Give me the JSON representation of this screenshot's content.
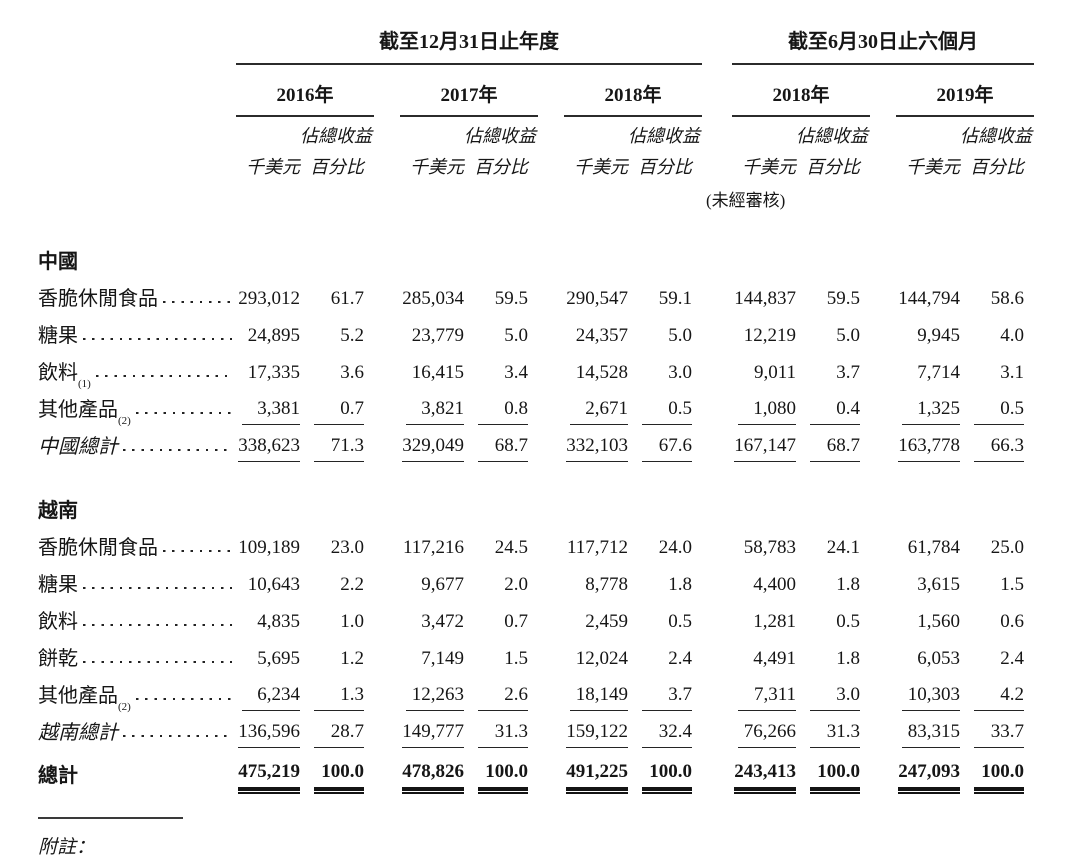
{
  "document": {
    "notes_label": "附註："
  },
  "table": {
    "group_headers": [
      {
        "title": "截至12月31日止年度"
      },
      {
        "title": "截至6月30日止六個月"
      }
    ],
    "years": [
      "2016年",
      "2017年",
      "2018年",
      "2018年",
      "2019年"
    ],
    "col_headers": {
      "pct_top": "佔總收益",
      "amount": "千美元",
      "pct_bottom": "百分比",
      "unaudited": "(未經審核)"
    },
    "rows": [
      {
        "type": "gap"
      },
      {
        "type": "section",
        "label": "中國"
      },
      {
        "type": "data",
        "label": "香脆休閒食品",
        "leader": true,
        "values": [
          "293,012",
          "61.7",
          "285,034",
          "59.5",
          "290,547",
          "59.1",
          "144,837",
          "59.5",
          "144,794",
          "58.6"
        ]
      },
      {
        "type": "data",
        "label": "糖果",
        "leader": true,
        "values": [
          "24,895",
          "5.2",
          "23,779",
          "5.0",
          "24,357",
          "5.0",
          "12,219",
          "5.0",
          "9,945",
          "4.0"
        ]
      },
      {
        "type": "data",
        "label": "飲料",
        "sup": "(1)",
        "leader": true,
        "values": [
          "17,335",
          "3.6",
          "16,415",
          "3.4",
          "14,528",
          "3.0",
          "9,011",
          "3.7",
          "7,714",
          "3.1"
        ]
      },
      {
        "type": "data",
        "label": "其他產品",
        "sup": "(2)",
        "leader": true,
        "rule": "below",
        "values": [
          "3,381",
          "0.7",
          "3,821",
          "0.8",
          "2,671",
          "0.5",
          "1,080",
          "0.4",
          "1,325",
          "0.5"
        ]
      },
      {
        "type": "subtotal",
        "label": "中國總計",
        "leader": true,
        "rule": "below",
        "values": [
          "338,623",
          "71.3",
          "329,049",
          "68.7",
          "332,103",
          "67.6",
          "167,147",
          "68.7",
          "163,778",
          "66.3"
        ]
      },
      {
        "type": "gap"
      },
      {
        "type": "section",
        "label": "越南"
      },
      {
        "type": "data",
        "label": "香脆休閒食品",
        "leader": true,
        "values": [
          "109,189",
          "23.0",
          "117,216",
          "24.5",
          "117,712",
          "24.0",
          "58,783",
          "24.1",
          "61,784",
          "25.0"
        ]
      },
      {
        "type": "data",
        "label": "糖果",
        "leader": true,
        "values": [
          "10,643",
          "2.2",
          "9,677",
          "2.0",
          "8,778",
          "1.8",
          "4,400",
          "1.8",
          "3,615",
          "1.5"
        ]
      },
      {
        "type": "data",
        "label": "飲料",
        "leader": true,
        "values": [
          "4,835",
          "1.0",
          "3,472",
          "0.7",
          "2,459",
          "0.5",
          "1,281",
          "0.5",
          "1,560",
          "0.6"
        ]
      },
      {
        "type": "data",
        "label": "餅乾",
        "leader": true,
        "values": [
          "5,695",
          "1.2",
          "7,149",
          "1.5",
          "12,024",
          "2.4",
          "4,491",
          "1.8",
          "6,053",
          "2.4"
        ]
      },
      {
        "type": "data",
        "label": "其他產品",
        "sup": "(2)",
        "leader": true,
        "rule": "below",
        "values": [
          "6,234",
          "1.3",
          "12,263",
          "2.6",
          "18,149",
          "3.7",
          "7,311",
          "3.0",
          "10,303",
          "4.2"
        ]
      },
      {
        "type": "subtotal",
        "label": "越南總計",
        "leader": true,
        "rule": "below",
        "values": [
          "136,596",
          "28.7",
          "149,777",
          "31.3",
          "159,122",
          "32.4",
          "76,266",
          "31.3",
          "83,315",
          "33.7"
        ]
      },
      {
        "type": "grand",
        "label": "總計",
        "values": [
          "475,219",
          "100.0",
          "478,826",
          "100.0",
          "491,225",
          "100.0",
          "243,413",
          "100.0",
          "247,093",
          "100.0"
        ]
      }
    ]
  }
}
